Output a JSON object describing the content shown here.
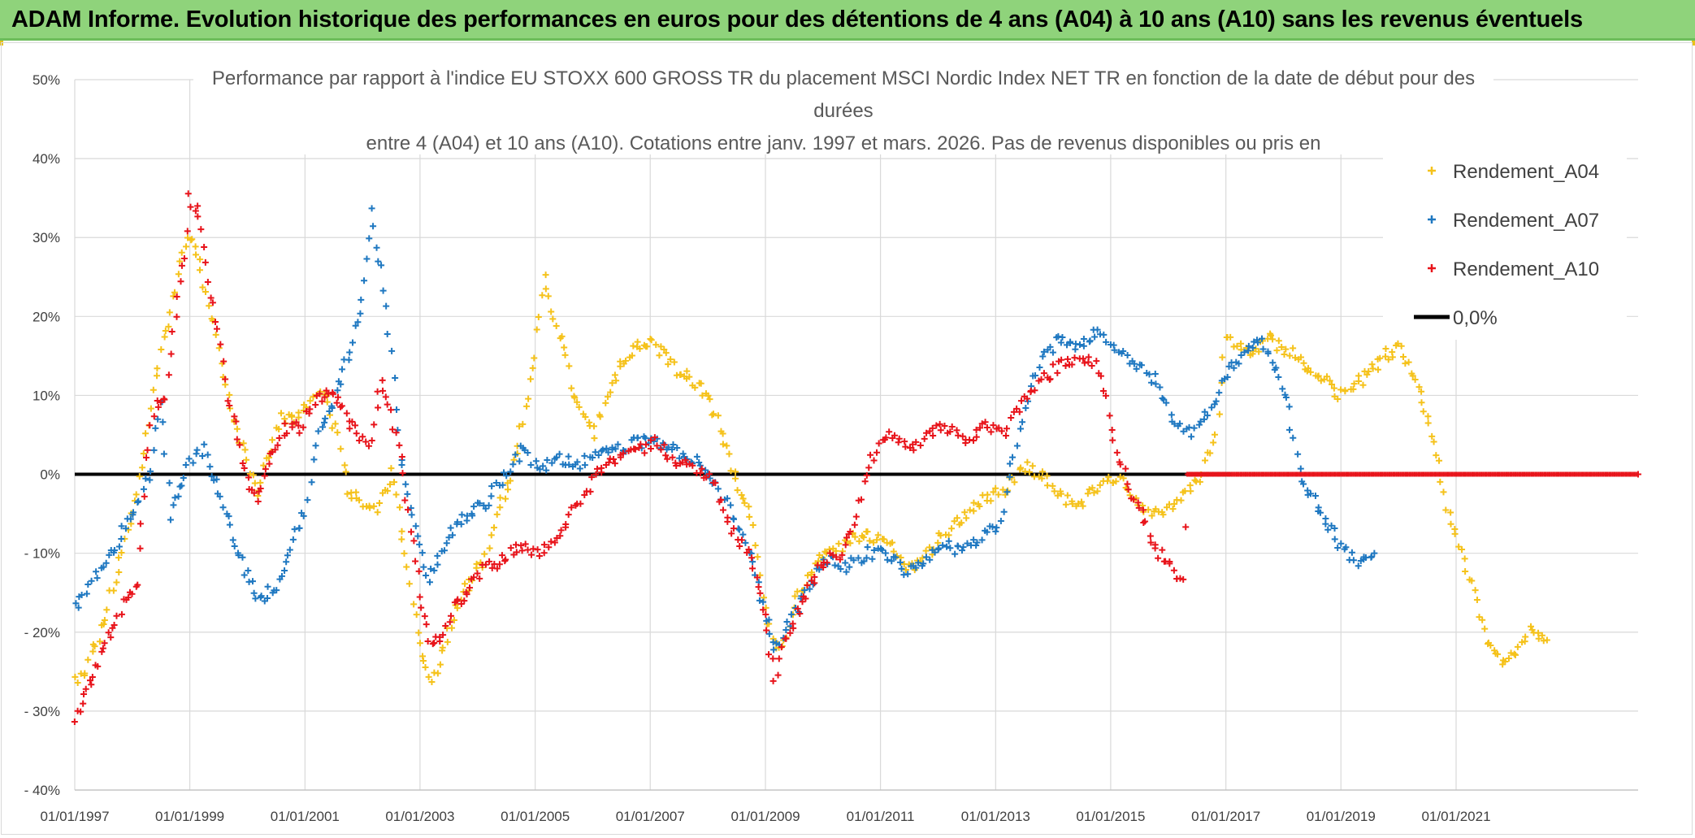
{
  "banner": {
    "title": "ADAM Informe. Evolution historique des performances en euros pour des détentions de 4 ans (A04) à 10 ans (A10) sans les revenus éventuels"
  },
  "chart_data": {
    "type": "scatter",
    "title_lines": [
      "Performance  par rapport à l'indice EU STOXX 600 GROSS TR  du placement MSCI Nordic Index NET TR en fonction de la date de début pour des",
      "durées",
      "entre 4 (A04) et 10 ans (A10). Cotations entre janv. 1997 et mars. 2026. Pas de revenus disponibles ou pris en"
    ],
    "xlabel": "",
    "ylabel": "",
    "x_ticks": [
      "01/01/1997",
      "01/01/1999",
      "01/01/2001",
      "01/01/2003",
      "01/01/2005",
      "01/01/2007",
      "01/01/2009",
      "01/01/2011",
      "01/01/2013",
      "01/01/2015",
      "01/01/2017",
      "01/01/2019",
      "01/01/2021"
    ],
    "xlim": [
      "1997-01-01",
      "2024-03-01"
    ],
    "y_ticks": [
      "50%",
      "40%",
      "30%",
      "20%",
      "10%",
      "0%",
      "- 10%",
      "- 20%",
      "- 30%",
      "- 40%"
    ],
    "ylim": [
      -40,
      50
    ],
    "y_unit": "%",
    "grid": true,
    "legend_position": "top-right",
    "reference_line": {
      "name": "0,0%",
      "value": 0,
      "color": "#000000"
    },
    "series": [
      {
        "name": "Rendement_A04",
        "color": "#f5c21b",
        "marker": "+",
        "points": [
          [
            "1997-01-01",
            -26
          ],
          [
            "1997-04-01",
            -24
          ],
          [
            "1997-07-01",
            -19
          ],
          [
            "1997-10-01",
            -12
          ],
          [
            "1998-01-01",
            -5
          ],
          [
            "1998-03-01",
            1
          ],
          [
            "1998-05-01",
            8
          ],
          [
            "1998-07-01",
            16
          ],
          [
            "1998-09-01",
            20
          ],
          [
            "1998-11-01",
            27
          ],
          [
            "1999-01-01",
            30
          ],
          [
            "1999-03-01",
            27
          ],
          [
            "1999-05-01",
            22
          ],
          [
            "1999-07-01",
            16
          ],
          [
            "1999-09-01",
            10
          ],
          [
            "1999-11-01",
            5
          ],
          [
            "2000-01-01",
            2
          ],
          [
            "2000-03-01",
            -3
          ],
          [
            "2000-05-01",
            2
          ],
          [
            "2000-08-01",
            7
          ],
          [
            "2000-11-01",
            7
          ],
          [
            "2001-02-01",
            9
          ],
          [
            "2001-05-01",
            10
          ],
          [
            "2001-08-01",
            5
          ],
          [
            "2001-10-01",
            -2
          ],
          [
            "2002-01-01",
            -4
          ],
          [
            "2002-04-01",
            -4
          ],
          [
            "2002-07-01",
            0
          ],
          [
            "2002-10-01",
            -10
          ],
          [
            "2003-01-01",
            -22
          ],
          [
            "2003-03-01",
            -26
          ],
          [
            "2003-05-01",
            -24
          ],
          [
            "2003-08-01",
            -18
          ],
          [
            "2003-11-01",
            -14
          ],
          [
            "2004-02-01",
            -11
          ],
          [
            "2004-05-01",
            -5
          ],
          [
            "2004-08-01",
            0
          ],
          [
            "2004-11-01",
            8
          ],
          [
            "2005-01-01",
            15
          ],
          [
            "2005-03-01",
            26
          ],
          [
            "2005-05-01",
            19
          ],
          [
            "2005-07-01",
            16
          ],
          [
            "2005-09-01",
            10
          ],
          [
            "2005-11-01",
            7
          ],
          [
            "2006-01-01",
            5
          ],
          [
            "2006-04-01",
            10
          ],
          [
            "2006-07-01",
            14
          ],
          [
            "2006-10-01",
            16
          ],
          [
            "2007-01-01",
            17
          ],
          [
            "2007-04-01",
            15
          ],
          [
            "2007-07-01",
            13
          ],
          [
            "2007-10-01",
            12
          ],
          [
            "2008-01-01",
            10
          ],
          [
            "2008-04-01",
            5
          ],
          [
            "2008-07-01",
            -1
          ],
          [
            "2008-10-01",
            -5
          ],
          [
            "2009-01-01",
            -17
          ],
          [
            "2009-03-01",
            -22
          ],
          [
            "2009-05-01",
            -21
          ],
          [
            "2009-08-01",
            -15
          ],
          [
            "2009-11-01",
            -12
          ],
          [
            "2010-02-01",
            -10
          ],
          [
            "2010-05-01",
            -9
          ],
          [
            "2010-08-01",
            -8
          ],
          [
            "2010-11-01",
            -8
          ],
          [
            "2011-03-01",
            -9
          ],
          [
            "2011-07-01",
            -12
          ],
          [
            "2011-11-01",
            -10
          ],
          [
            "2012-03-01",
            -7
          ],
          [
            "2012-07-01",
            -5
          ],
          [
            "2012-11-01",
            -3
          ],
          [
            "2013-03-01",
            -2
          ],
          [
            "2013-07-01",
            1
          ],
          [
            "2013-11-01",
            0
          ],
          [
            "2014-03-01",
            -3
          ],
          [
            "2014-07-01",
            -4
          ],
          [
            "2014-11-01",
            -1
          ],
          [
            "2015-03-01",
            0
          ],
          [
            "2015-07-01",
            -4
          ],
          [
            "2015-11-01",
            -5
          ],
          [
            "2016-03-01",
            -3
          ],
          [
            "2016-07-01",
            -1
          ],
          [
            "2016-11-01",
            5
          ],
          [
            "2017-01-01",
            18
          ],
          [
            "2017-04-01",
            16
          ],
          [
            "2017-07-01",
            15
          ],
          [
            "2017-10-01",
            17
          ],
          [
            "2018-01-01",
            16
          ],
          [
            "2018-04-01",
            15
          ],
          [
            "2018-07-01",
            13
          ],
          [
            "2018-10-01",
            12
          ],
          [
            "2019-01-01",
            10
          ],
          [
            "2019-04-01",
            11
          ],
          [
            "2019-07-01",
            13
          ],
          [
            "2019-10-01",
            15
          ],
          [
            "2020-01-01",
            16
          ],
          [
            "2020-03-01",
            14
          ],
          [
            "2020-06-01",
            9
          ],
          [
            "2020-09-01",
            3
          ],
          [
            "2020-11-01",
            -4
          ],
          [
            "2021-02-01",
            -10
          ],
          [
            "2021-05-01",
            -15
          ],
          [
            "2021-08-01",
            -22
          ],
          [
            "2021-11-01",
            -24
          ],
          [
            "2022-02-01",
            -22
          ],
          [
            "2022-05-01",
            -19
          ],
          [
            "2022-08-01",
            -21
          ]
        ]
      },
      {
        "name": "Rendement_A07",
        "color": "#1f78c1",
        "marker": "+",
        "points": [
          [
            "1997-01-01",
            -17
          ],
          [
            "1997-04-01",
            -14
          ],
          [
            "1997-08-01",
            -11
          ],
          [
            "1997-11-01",
            -7
          ],
          [
            "1998-02-01",
            -4
          ],
          [
            "1998-05-01",
            1
          ],
          [
            "1998-07-01",
            10
          ],
          [
            "1998-09-01",
            -5
          ],
          [
            "1998-11-01",
            -2
          ],
          [
            "1999-01-01",
            2
          ],
          [
            "1999-04-01",
            3
          ],
          [
            "1999-07-01",
            -2
          ],
          [
            "1999-10-01",
            -8
          ],
          [
            "2000-01-01",
            -13
          ],
          [
            "2000-04-01",
            -16
          ],
          [
            "2000-07-01",
            -14
          ],
          [
            "2000-10-01",
            -9
          ],
          [
            "2001-01-01",
            -5
          ],
          [
            "2001-04-01",
            6
          ],
          [
            "2001-07-01",
            9
          ],
          [
            "2001-10-01",
            15
          ],
          [
            "2002-01-01",
            22
          ],
          [
            "2002-03-01",
            33
          ],
          [
            "2002-05-01",
            26
          ],
          [
            "2002-07-01",
            15
          ],
          [
            "2002-09-01",
            2
          ],
          [
            "2002-11-01",
            -4
          ],
          [
            "2003-01-01",
            -9
          ],
          [
            "2003-03-01",
            -13
          ],
          [
            "2003-05-01",
            -10
          ],
          [
            "2003-08-01",
            -7
          ],
          [
            "2003-11-01",
            -5
          ],
          [
            "2004-02-01",
            -4
          ],
          [
            "2004-06-01",
            -1
          ],
          [
            "2004-10-01",
            3
          ],
          [
            "2005-02-01",
            1
          ],
          [
            "2005-06-01",
            2
          ],
          [
            "2005-10-01",
            1
          ],
          [
            "2006-02-01",
            3
          ],
          [
            "2006-06-01",
            3
          ],
          [
            "2006-10-01",
            4
          ],
          [
            "2007-02-01",
            4
          ],
          [
            "2007-06-01",
            3
          ],
          [
            "2007-10-01",
            2
          ],
          [
            "2008-02-01",
            -1
          ],
          [
            "2008-06-01",
            -5
          ],
          [
            "2008-10-01",
            -10
          ],
          [
            "2009-01-01",
            -18
          ],
          [
            "2009-03-01",
            -22
          ],
          [
            "2009-06-01",
            -19
          ],
          [
            "2009-10-01",
            -14
          ],
          [
            "2010-02-01",
            -11
          ],
          [
            "2010-06-01",
            -12
          ],
          [
            "2010-10-01",
            -10
          ],
          [
            "2011-02-01",
            -10
          ],
          [
            "2011-06-01",
            -12
          ],
          [
            "2011-10-01",
            -11
          ],
          [
            "2012-02-01",
            -9
          ],
          [
            "2012-06-01",
            -10
          ],
          [
            "2012-10-01",
            -8
          ],
          [
            "2013-02-01",
            -6
          ],
          [
            "2013-06-01",
            6
          ],
          [
            "2013-10-01",
            14
          ],
          [
            "2014-02-01",
            17
          ],
          [
            "2014-06-01",
            16
          ],
          [
            "2014-10-01",
            18
          ],
          [
            "2015-02-01",
            16
          ],
          [
            "2015-06-01",
            14
          ],
          [
            "2015-10-01",
            12
          ],
          [
            "2016-02-01",
            7
          ],
          [
            "2016-06-01",
            5
          ],
          [
            "2016-10-01",
            8
          ],
          [
            "2017-01-01",
            13
          ],
          [
            "2017-05-01",
            15
          ],
          [
            "2017-08-01",
            17
          ],
          [
            "2017-11-01",
            14
          ],
          [
            "2018-02-01",
            8
          ],
          [
            "2018-05-01",
            -1
          ],
          [
            "2018-08-01",
            -4
          ],
          [
            "2018-11-01",
            -7
          ],
          [
            "2019-02-01",
            -10
          ],
          [
            "2019-05-01",
            -11
          ],
          [
            "2019-08-01",
            -10
          ]
        ]
      },
      {
        "name": "Rendement_A10",
        "color": "#e8141b",
        "marker": "+",
        "points": [
          [
            "1997-01-01",
            -31
          ],
          [
            "1997-03-01",
            -28
          ],
          [
            "1997-06-01",
            -24
          ],
          [
            "1997-09-01",
            -19
          ],
          [
            "1997-12-01",
            -15
          ],
          [
            "1998-02-01",
            -14
          ],
          [
            "1998-04-01",
            2
          ],
          [
            "1998-06-01",
            9
          ],
          [
            "1998-08-01",
            10
          ],
          [
            "1998-10-01",
            20
          ],
          [
            "1998-12-01",
            28
          ],
          [
            "1999-01-01",
            35
          ],
          [
            "1999-03-01",
            33
          ],
          [
            "1999-05-01",
            24
          ],
          [
            "1999-07-01",
            18
          ],
          [
            "1999-09-01",
            10
          ],
          [
            "1999-11-01",
            5
          ],
          [
            "2000-01-01",
            -1
          ],
          [
            "2000-03-01",
            -3
          ],
          [
            "2000-06-01",
            2
          ],
          [
            "2000-09-01",
            6
          ],
          [
            "2000-12-01",
            6
          ],
          [
            "2001-03-01",
            9
          ],
          [
            "2001-06-01",
            11
          ],
          [
            "2001-09-01",
            8
          ],
          [
            "2001-12-01",
            5
          ],
          [
            "2002-03-01",
            4
          ],
          [
            "2002-05-01",
            12
          ],
          [
            "2002-07-01",
            8
          ],
          [
            "2002-09-01",
            2
          ],
          [
            "2002-11-01",
            -7
          ],
          [
            "2003-01-01",
            -15
          ],
          [
            "2003-03-01",
            -21
          ],
          [
            "2003-05-01",
            -21
          ],
          [
            "2003-08-01",
            -17
          ],
          [
            "2003-11-01",
            -15
          ],
          [
            "2004-02-01",
            -12
          ],
          [
            "2004-06-01",
            -11
          ],
          [
            "2004-10-01",
            -9
          ],
          [
            "2005-02-01",
            -10
          ],
          [
            "2005-06-01",
            -7
          ],
          [
            "2005-10-01",
            -4
          ],
          [
            "2006-02-01",
            0
          ],
          [
            "2006-06-01",
            2
          ],
          [
            "2006-10-01",
            3
          ],
          [
            "2007-02-01",
            4
          ],
          [
            "2007-06-01",
            2
          ],
          [
            "2007-10-01",
            1
          ],
          [
            "2008-02-01",
            -1
          ],
          [
            "2008-06-01",
            -7
          ],
          [
            "2008-10-01",
            -10
          ],
          [
            "2009-01-01",
            -18
          ],
          [
            "2009-03-01",
            -26
          ],
          [
            "2009-05-01",
            -21
          ],
          [
            "2009-08-01",
            -17
          ],
          [
            "2009-11-01",
            -13
          ],
          [
            "2010-02-01",
            -11
          ],
          [
            "2010-05-01",
            -10
          ],
          [
            "2010-08-01",
            -5
          ],
          [
            "2010-11-01",
            2
          ],
          [
            "2011-03-01",
            5
          ],
          [
            "2011-07-01",
            3
          ],
          [
            "2011-11-01",
            5
          ],
          [
            "2012-03-01",
            6
          ],
          [
            "2012-07-01",
            4
          ],
          [
            "2012-11-01",
            6
          ],
          [
            "2013-03-01",
            5
          ],
          [
            "2013-07-01",
            10
          ],
          [
            "2013-11-01",
            12
          ],
          [
            "2014-03-01",
            14
          ],
          [
            "2014-07-01",
            15
          ],
          [
            "2014-11-01",
            13
          ],
          [
            "2015-02-01",
            3
          ],
          [
            "2015-05-01",
            -2
          ],
          [
            "2015-08-01",
            -6
          ],
          [
            "2015-11-01",
            -10
          ],
          [
            "2016-02-01",
            -12
          ],
          [
            "2016-04-01",
            -14
          ],
          [
            "2016-05-01",
            0
          ],
          [
            "2017-01-01",
            0
          ],
          [
            "2018-01-01",
            0
          ],
          [
            "2019-01-01",
            0
          ],
          [
            "2020-01-01",
            0
          ],
          [
            "2021-01-01",
            0
          ],
          [
            "2022-01-01",
            0
          ],
          [
            "2023-01-01",
            0
          ],
          [
            "2024-03-01",
            0
          ]
        ]
      }
    ]
  }
}
